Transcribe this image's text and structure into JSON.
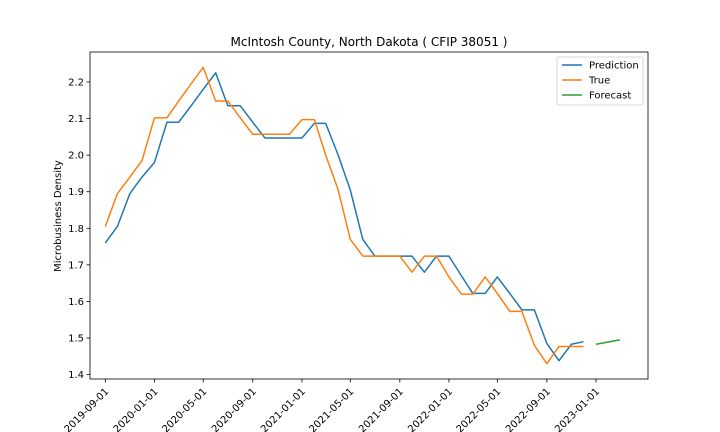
{
  "chart_data": {
    "type": "line",
    "title": "McIntosh County, North Dakota ( CFIP 38051 )",
    "xlabel": "",
    "ylabel": "Microbusiness Density",
    "xlim": [
      "2019-07-25",
      "2023-05-10"
    ],
    "ylim": [
      1.388,
      2.282
    ],
    "x_ticks": [
      "2019-09-01",
      "2020-01-01",
      "2020-05-01",
      "2020-09-01",
      "2021-01-01",
      "2021-05-01",
      "2021-09-01",
      "2022-01-01",
      "2022-05-01",
      "2022-09-01",
      "2023-01-01"
    ],
    "y_ticks": [
      1.4,
      1.5,
      1.6,
      1.7,
      1.8,
      1.9,
      2.0,
      2.1,
      2.2
    ],
    "grid": false,
    "legend_position": "top-right",
    "series": [
      {
        "name": "Prediction",
        "color": "#1f77b4",
        "points": [
          [
            "2019-09-01",
            1.76
          ],
          [
            "2019-10-01",
            1.805
          ],
          [
            "2019-11-01",
            1.895
          ],
          [
            "2019-12-01",
            1.94
          ],
          [
            "2020-01-01",
            1.98
          ],
          [
            "2020-02-01",
            2.09
          ],
          [
            "2020-03-01",
            2.09
          ],
          [
            "2020-04-01",
            2.135
          ],
          [
            "2020-05-01",
            2.18
          ],
          [
            "2020-06-01",
            2.225
          ],
          [
            "2020-07-01",
            2.135
          ],
          [
            "2020-08-01",
            2.135
          ],
          [
            "2020-09-01",
            2.09
          ],
          [
            "2020-10-01",
            2.047
          ],
          [
            "2020-11-01",
            2.047
          ],
          [
            "2020-12-01",
            2.047
          ],
          [
            "2021-01-01",
            2.047
          ],
          [
            "2021-02-01",
            2.087
          ],
          [
            "2021-03-01",
            2.087
          ],
          [
            "2021-04-01",
            2.0
          ],
          [
            "2021-05-01",
            1.905
          ],
          [
            "2021-06-01",
            1.77
          ],
          [
            "2021-07-01",
            1.724
          ],
          [
            "2021-08-01",
            1.724
          ],
          [
            "2021-09-01",
            1.724
          ],
          [
            "2021-10-01",
            1.724
          ],
          [
            "2021-11-01",
            1.68
          ],
          [
            "2021-12-01",
            1.724
          ],
          [
            "2022-01-01",
            1.724
          ],
          [
            "2022-02-01",
            1.67
          ],
          [
            "2022-03-01",
            1.622
          ],
          [
            "2022-04-01",
            1.622
          ],
          [
            "2022-05-01",
            1.667
          ],
          [
            "2022-06-01",
            1.622
          ],
          [
            "2022-07-01",
            1.577
          ],
          [
            "2022-08-01",
            1.577
          ],
          [
            "2022-09-01",
            1.485
          ],
          [
            "2022-10-01",
            1.438
          ],
          [
            "2022-11-01",
            1.483
          ],
          [
            "2022-12-01",
            1.49
          ]
        ]
      },
      {
        "name": "True",
        "color": "#ff7f0e",
        "points": [
          [
            "2019-09-01",
            1.805
          ],
          [
            "2019-10-01",
            1.895
          ],
          [
            "2019-11-01",
            1.94
          ],
          [
            "2019-12-01",
            1.985
          ],
          [
            "2020-01-01",
            2.102
          ],
          [
            "2020-02-01",
            2.102
          ],
          [
            "2020-03-01",
            2.148
          ],
          [
            "2020-04-01",
            2.195
          ],
          [
            "2020-05-01",
            2.24
          ],
          [
            "2020-06-01",
            2.148
          ],
          [
            "2020-07-01",
            2.148
          ],
          [
            "2020-08-01",
            2.102
          ],
          [
            "2020-09-01",
            2.057
          ],
          [
            "2020-10-01",
            2.057
          ],
          [
            "2020-11-01",
            2.057
          ],
          [
            "2020-12-01",
            2.057
          ],
          [
            "2021-01-01",
            2.097
          ],
          [
            "2021-02-01",
            2.097
          ],
          [
            "2021-03-01",
            2.0
          ],
          [
            "2021-04-01",
            1.905
          ],
          [
            "2021-05-01",
            1.77
          ],
          [
            "2021-06-01",
            1.724
          ],
          [
            "2021-07-01",
            1.724
          ],
          [
            "2021-08-01",
            1.724
          ],
          [
            "2021-09-01",
            1.724
          ],
          [
            "2021-10-01",
            1.68
          ],
          [
            "2021-11-01",
            1.724
          ],
          [
            "2021-12-01",
            1.724
          ],
          [
            "2022-01-01",
            1.667
          ],
          [
            "2022-02-01",
            1.62
          ],
          [
            "2022-03-01",
            1.62
          ],
          [
            "2022-04-01",
            1.667
          ],
          [
            "2022-05-01",
            1.622
          ],
          [
            "2022-06-01",
            1.573
          ],
          [
            "2022-07-01",
            1.573
          ],
          [
            "2022-08-01",
            1.48
          ],
          [
            "2022-09-01",
            1.43
          ],
          [
            "2022-10-01",
            1.477
          ],
          [
            "2022-11-01",
            1.477
          ],
          [
            "2022-12-01",
            1.477
          ]
        ]
      },
      {
        "name": "Forecast",
        "color": "#2ca02c",
        "points": [
          [
            "2023-01-01",
            1.483
          ],
          [
            "2023-03-01",
            1.495
          ]
        ]
      }
    ]
  }
}
